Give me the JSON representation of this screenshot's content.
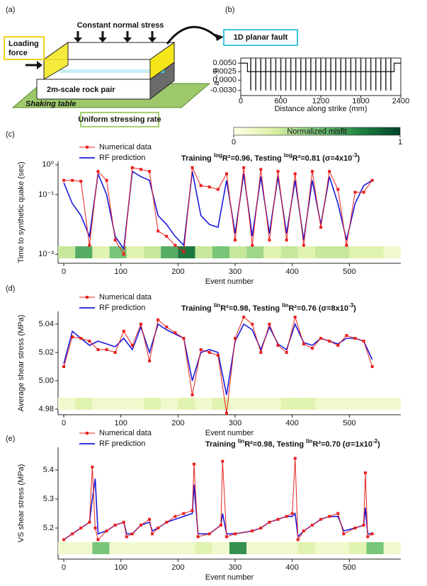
{
  "diagram": {
    "panel_label": "(a)",
    "constant_normal_stress": "Constant normal stress",
    "loading_force": [
      "Loading",
      "force"
    ],
    "rock_pair": "2m-scale rock pair",
    "shaking_table": "Shaking table",
    "stressing_rate": "Uniform stressing rate",
    "fault": "1D planar fault"
  },
  "chart_data": [
    {
      "type": "profile",
      "panel_label": "(b)",
      "xlabel": "Distance along strike (mm)",
      "ylabel": "a – b",
      "xlim": [
        0,
        2400
      ],
      "xticks": [
        0,
        600,
        1200,
        1800,
        2400
      ],
      "ylim": [
        -0.0045,
        0.0065
      ],
      "yticks": [
        {
          "value": 0.005,
          "label": "0.0050"
        },
        {
          "value": 0.0025,
          "label": "0.0025"
        },
        {
          "value": 0,
          "label": "0.0000"
        },
        {
          "value": -0.003,
          "label": "-0.0030"
        }
      ],
      "x": [
        0,
        100,
        100,
        2300,
        2300,
        2400
      ],
      "values": [
        0.005,
        0.005,
        0.0025,
        0.0025,
        0.005,
        0.005
      ],
      "color": "#111111",
      "teeth_x": [
        150,
        225,
        300,
        375,
        450,
        525,
        600,
        675,
        750,
        825,
        900,
        975,
        1050,
        1125,
        1200,
        1275,
        1350,
        1425,
        1500,
        1575,
        1650,
        1725,
        1800,
        1875,
        1950,
        2025,
        2100,
        2175,
        2250
      ],
      "teeth_values": [
        -0.003,
        -0.003,
        -0.003,
        -0.003,
        -0.003,
        -0.003,
        -0.003,
        -0.003,
        -0.003,
        -0.003,
        -0.003,
        -0.003,
        -0.003,
        -0.003,
        -0.003,
        -0.003,
        -0.003,
        -0.003,
        -0.003,
        -0.003,
        -0.003,
        -0.003,
        -0.003,
        -0.003,
        -0.003,
        -0.003,
        -0.003,
        -0.003,
        -0.003
      ]
    },
    {
      "type": "line",
      "panel_label": "(c)",
      "log_y": true,
      "xlabel": "Event number",
      "ylabel": "Time to synthetic quake (sec)",
      "colorbar": {
        "label": "Normalized misfit",
        "ticks": [
          0,
          1
        ],
        "colormap": [
          "#ffffe5",
          "#d9f0a3",
          "#78c679",
          "#238443",
          "#004529"
        ]
      },
      "annotation": [
        {
          "text": "Training "
        },
        {
          "text": "log",
          "sup": true
        },
        {
          "text": "R²=0.96, Testing "
        },
        {
          "text": "log",
          "sup": true
        },
        {
          "text": "R²=0.81 (σ=4x10"
        },
        {
          "text": "-3",
          "sup": true
        },
        {
          "text": ")"
        }
      ],
      "xlim": [
        -10,
        590
      ],
      "xticks": [
        0,
        100,
        200,
        300,
        400,
        500
      ],
      "ylim": [
        0.0005,
        1.3
      ],
      "yticks": [
        {
          "value": 1,
          "label": "10⁰"
        },
        {
          "value": 0.1,
          "label": "10⁻¹"
        },
        {
          "value": 0.001,
          "label": "10⁻³"
        }
      ],
      "x": [
        0,
        15,
        30,
        45,
        60,
        75,
        90,
        105,
        120,
        135,
        150,
        165,
        180,
        195,
        210,
        225,
        240,
        255,
        270,
        285,
        300,
        315,
        330,
        345,
        360,
        375,
        390,
        405,
        420,
        435,
        450,
        465,
        480,
        495,
        510,
        525,
        540
      ],
      "series": [
        {
          "name": "Numerical data",
          "color": "#e8211f",
          "marker": true,
          "values": [
            0.3,
            0.3,
            0.28,
            0.002,
            0.6,
            0.3,
            0.003,
            0.001,
            0.8,
            0.7,
            0.6,
            0.006,
            0.004,
            0.002,
            0.0012,
            0.8,
            0.2,
            0.18,
            0.15,
            0.5,
            0.003,
            0.8,
            0.002,
            0.7,
            0.003,
            0.6,
            0.003,
            0.5,
            0.002,
            0.6,
            0.008,
            0.6,
            0.15,
            0.002,
            0.12,
            0.12,
            0.3
          ]
        },
        {
          "name": "RF prediction",
          "color": "#1a1adb",
          "values": [
            0.25,
            0.05,
            0.02,
            0.004,
            0.5,
            0.1,
            0.004,
            0.0015,
            0.6,
            0.4,
            0.3,
            0.02,
            0.01,
            0.004,
            0.002,
            0.6,
            0.02,
            0.01,
            0.008,
            0.3,
            0.005,
            0.5,
            0.004,
            0.4,
            0.005,
            0.4,
            0.005,
            0.3,
            0.003,
            0.3,
            0.01,
            0.4,
            0.05,
            0.003,
            0.05,
            0.2,
            0.3
          ]
        }
      ],
      "misfit_bins": [
        -10,
        20,
        50,
        80,
        110,
        140,
        170,
        200,
        230,
        260,
        290,
        320,
        350,
        380,
        410,
        440,
        470,
        500,
        530,
        560,
        590
      ],
      "misfit": [
        0.3,
        0.6,
        0.2,
        0.5,
        0.2,
        0.3,
        0.6,
        0.8,
        0.3,
        0.5,
        0.3,
        0.4,
        0.2,
        0.3,
        0.2,
        0.3,
        0.3,
        0.2,
        0.2,
        0.1
      ]
    },
    {
      "type": "line",
      "panel_label": "(d)",
      "xlabel": "Event number",
      "ylabel": "Average shear stress (MPa)",
      "annotation": [
        {
          "text": "Training "
        },
        {
          "text": "lin",
          "sup": true
        },
        {
          "text": "R²=0.98, Testing "
        },
        {
          "text": "lin",
          "sup": true
        },
        {
          "text": "R²=0.76 (σ=8x10"
        },
        {
          "text": "-3",
          "sup": true
        },
        {
          "text": ")"
        }
      ],
      "xlim": [
        -10,
        590
      ],
      "xticks": [
        0,
        100,
        200,
        300,
        400,
        500
      ],
      "ylim": [
        4.976,
        5.049
      ],
      "yticks": [
        5.04,
        5.02,
        {
          "value": 5.0,
          "label": "5.00"
        },
        4.98
      ],
      "x": [
        0,
        15,
        30,
        45,
        60,
        75,
        90,
        105,
        120,
        135,
        150,
        165,
        180,
        195,
        210,
        225,
        240,
        255,
        270,
        285,
        300,
        315,
        330,
        345,
        360,
        375,
        390,
        405,
        420,
        435,
        450,
        465,
        480,
        495,
        510,
        525,
        540
      ],
      "series": [
        {
          "name": "Numerical data",
          "color": "#e8211f",
          "marker": true,
          "values": [
            5.01,
            5.031,
            5.03,
            5.028,
            5.022,
            5.022,
            5.02,
            5.035,
            5.025,
            5.04,
            5.014,
            5.043,
            5.038,
            5.034,
            5.03,
            4.99,
            5.022,
            5.02,
            5.018,
            4.977,
            5.03,
            5.045,
            5.04,
            5.02,
            5.04,
            5.025,
            5.02,
            5.045,
            5.026,
            5.023,
            5.03,
            5.028,
            5.025,
            5.032,
            5.03,
            5.028,
            5.01
          ]
        },
        {
          "name": "RF prediction",
          "color": "#1a1adb",
          "values": [
            5.012,
            5.035,
            5.03,
            5.025,
            5.028,
            5.026,
            5.024,
            5.03,
            5.022,
            5.038,
            5.02,
            5.04,
            5.036,
            5.033,
            5.03,
            5.0,
            5.02,
            5.022,
            5.02,
            4.99,
            5.028,
            5.04,
            5.036,
            5.022,
            5.038,
            5.026,
            5.022,
            5.04,
            5.027,
            5.025,
            5.03,
            5.028,
            5.026,
            5.03,
            5.03,
            5.028,
            5.015
          ]
        }
      ],
      "misfit_bins": [
        -10,
        20,
        50,
        80,
        110,
        140,
        170,
        200,
        230,
        260,
        290,
        320,
        350,
        380,
        410,
        440,
        470,
        500,
        530,
        560,
        590
      ],
      "misfit": [
        0.1,
        0.2,
        0.1,
        0.1,
        0.1,
        0.2,
        0.1,
        0.2,
        0.1,
        0.2,
        0.1,
        0.1,
        0.1,
        0.2,
        0.2,
        0.1,
        0.1,
        0.1,
        0.1,
        0.1
      ]
    },
    {
      "type": "line",
      "panel_label": "(e)",
      "xlabel": "Event number",
      "ylabel": "VS shear stress (MPa)",
      "annotation": [
        {
          "text": "Training "
        },
        {
          "text": "lin",
          "sup": true
        },
        {
          "text": "R²=0.98, Testing "
        },
        {
          "text": "lin",
          "sup": true
        },
        {
          "text": "R²=0.70 (σ=1x10"
        },
        {
          "text": "-2",
          "sup": true
        },
        {
          "text": ")"
        }
      ],
      "xlim": [
        -10,
        590
      ],
      "xticks": [
        0,
        100,
        200,
        300,
        400,
        500
      ],
      "ylim": [
        5.093,
        5.478
      ],
      "yticks": [
        5.4,
        5.3,
        5.2
      ],
      "x": [
        0,
        15,
        30,
        45,
        50,
        55,
        60,
        75,
        90,
        105,
        110,
        120,
        135,
        150,
        155,
        165,
        180,
        195,
        210,
        225,
        228,
        235,
        255,
        275,
        278,
        285,
        300,
        330,
        345,
        360,
        375,
        390,
        400,
        405,
        410,
        420,
        435,
        450,
        465,
        480,
        490,
        510,
        525,
        528,
        532,
        540
      ],
      "series": [
        {
          "name": "Numerical data",
          "color": "#e8211f",
          "marker": true,
          "values": [
            5.16,
            5.18,
            5.2,
            5.22,
            5.41,
            5.2,
            5.16,
            5.19,
            5.21,
            5.22,
            5.17,
            5.18,
            5.21,
            5.23,
            5.18,
            5.2,
            5.22,
            5.24,
            5.25,
            5.26,
            5.42,
            5.17,
            5.18,
            5.21,
            5.43,
            5.17,
            5.18,
            5.19,
            5.2,
            5.22,
            5.23,
            5.24,
            5.25,
            5.44,
            5.16,
            5.19,
            5.21,
            5.23,
            5.24,
            5.25,
            5.18,
            5.2,
            5.21,
            5.39,
            5.17,
            5.18
          ]
        },
        {
          "name": "RF prediction",
          "color": "#1a1adb",
          "values": [
            5.16,
            5.18,
            5.2,
            5.22,
            5.3,
            5.37,
            5.18,
            5.19,
            5.21,
            5.22,
            5.18,
            5.18,
            5.21,
            5.22,
            5.19,
            5.2,
            5.22,
            5.23,
            5.24,
            5.25,
            5.35,
            5.18,
            5.18,
            5.21,
            5.25,
            5.18,
            5.18,
            5.19,
            5.2,
            5.22,
            5.23,
            5.24,
            5.24,
            5.25,
            5.17,
            5.19,
            5.21,
            5.23,
            5.24,
            5.24,
            5.19,
            5.2,
            5.21,
            5.27,
            5.18,
            5.18
          ]
        }
      ],
      "misfit_bins": [
        -10,
        20,
        50,
        80,
        110,
        140,
        170,
        200,
        230,
        260,
        290,
        320,
        350,
        380,
        410,
        440,
        470,
        500,
        530,
        560,
        590
      ],
      "misfit": [
        0.1,
        0.1,
        0.5,
        0.1,
        0.1,
        0.1,
        0.1,
        0.1,
        0.2,
        0.1,
        0.7,
        0.1,
        0.1,
        0.1,
        0.2,
        0.1,
        0.1,
        0.2,
        0.5,
        0.1
      ]
    }
  ]
}
